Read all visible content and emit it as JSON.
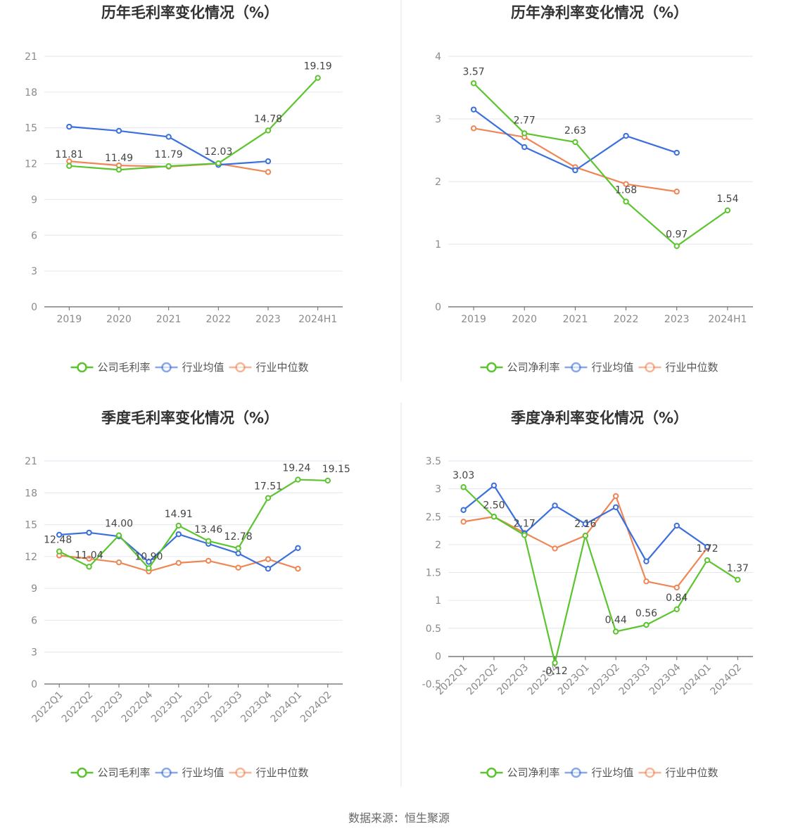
{
  "source_text": "数据来源：恒生聚源",
  "colors": {
    "company": "#5cc42e",
    "industry_avg": "#3a6fdc",
    "industry_median": "#ee8655",
    "grid": "#e3e6ef",
    "axis": "#666666",
    "divider": "#e6e6e6"
  },
  "chart_data": [
    {
      "type": "line",
      "title": "历年毛利率变化情况（%）",
      "categories": [
        "2019",
        "2020",
        "2021",
        "2022",
        "2023",
        "2024H1"
      ],
      "ylim": [
        0,
        21
      ],
      "yticks": [
        "0",
        "3",
        "6",
        "9",
        "12",
        "15",
        "18",
        "21"
      ],
      "rotate_x_labels": false,
      "grid": true,
      "legend_position": "bottom",
      "series": [
        {
          "name": "公司毛利率",
          "color_key": "company",
          "values": [
            11.81,
            11.49,
            11.79,
            12.03,
            14.78,
            19.19
          ],
          "labels": [
            "11.81",
            "11.49",
            "11.79",
            "12.03",
            "14.78",
            "19.19"
          ]
        },
        {
          "name": "行业均值",
          "color_key": "industry_avg",
          "values": [
            15.1,
            14.75,
            14.25,
            11.9,
            12.2,
            null
          ]
        },
        {
          "name": "行业中位数",
          "color_key": "industry_median",
          "values": [
            12.2,
            11.85,
            11.75,
            12.0,
            11.3,
            null
          ]
        }
      ]
    },
    {
      "type": "line",
      "title": "历年净利率变化情况（%）",
      "categories": [
        "2019",
        "2020",
        "2021",
        "2022",
        "2023",
        "2024H1"
      ],
      "ylim": [
        0,
        4
      ],
      "yticks": [
        "0",
        "1",
        "2",
        "3",
        "4"
      ],
      "rotate_x_labels": false,
      "grid": true,
      "legend_position": "bottom",
      "series": [
        {
          "name": "公司净利率",
          "color_key": "company",
          "values": [
            3.57,
            2.77,
            2.63,
            1.68,
            0.97,
            1.54
          ],
          "labels": [
            "3.57",
            "2.77",
            "2.63",
            "1.68",
            "0.97",
            "1.54"
          ]
        },
        {
          "name": "行业均值",
          "color_key": "industry_avg",
          "values": [
            3.15,
            2.55,
            2.18,
            2.73,
            2.46,
            null
          ]
        },
        {
          "name": "行业中位数",
          "color_key": "industry_median",
          "values": [
            2.85,
            2.71,
            2.23,
            1.96,
            1.84,
            null
          ]
        }
      ]
    },
    {
      "type": "line",
      "title": "季度毛利率变化情况（%）",
      "categories": [
        "2022Q1",
        "2022Q2",
        "2022Q3",
        "2022Q4",
        "2023Q1",
        "2023Q2",
        "2023Q3",
        "2023Q4",
        "2024Q1",
        "2024Q2"
      ],
      "ylim": [
        0,
        21
      ],
      "yticks": [
        "0",
        "3",
        "6",
        "9",
        "12",
        "15",
        "18",
        "21"
      ],
      "rotate_x_labels": true,
      "grid": true,
      "legend_position": "bottom",
      "series": [
        {
          "name": "公司毛利率",
          "color_key": "company",
          "values": [
            12.48,
            11.04,
            14.0,
            10.9,
            14.91,
            13.46,
            12.78,
            17.51,
            19.24,
            19.15
          ],
          "labels": [
            "12.48",
            "11.04",
            "14.00",
            "10.90",
            "14.91",
            "13.46",
            "12.78",
            "17.51",
            "19.24",
            "19.15"
          ]
        },
        {
          "name": "行业均值",
          "color_key": "industry_avg",
          "values": [
            14.05,
            14.25,
            13.9,
            11.5,
            14.1,
            13.2,
            12.3,
            10.85,
            12.8,
            null
          ]
        },
        {
          "name": "行业中位数",
          "color_key": "industry_median",
          "values": [
            12.1,
            11.8,
            11.45,
            10.6,
            11.4,
            11.6,
            10.95,
            11.75,
            10.85,
            null
          ]
        }
      ]
    },
    {
      "type": "line",
      "title": "季度净利率变化情况（%）",
      "categories": [
        "2022Q1",
        "2022Q2",
        "2022Q3",
        "2022Q4",
        "2023Q1",
        "2023Q2",
        "2023Q3",
        "2023Q4",
        "2024Q1",
        "2024Q2"
      ],
      "ylim": [
        -0.5,
        3.5
      ],
      "yticks": [
        "-0.5",
        "0",
        "0.5",
        "1",
        "1.5",
        "2",
        "2.5",
        "3",
        "3.5"
      ],
      "rotate_x_labels": true,
      "grid": true,
      "legend_position": "bottom",
      "series": [
        {
          "name": "公司净利率",
          "color_key": "company",
          "values": [
            3.03,
            2.5,
            2.17,
            -0.12,
            2.16,
            0.44,
            0.56,
            0.84,
            1.72,
            1.37
          ],
          "labels": [
            "3.03",
            "2.50",
            "2.17",
            "-0.12",
            "2.16",
            "0.44",
            "0.56",
            "0.84",
            "1.72",
            "1.37"
          ]
        },
        {
          "name": "行业均值",
          "color_key": "industry_avg",
          "values": [
            2.62,
            3.06,
            2.2,
            2.7,
            2.37,
            2.67,
            1.7,
            2.34,
            1.96,
            null
          ]
        },
        {
          "name": "行业中位数",
          "color_key": "industry_median",
          "values": [
            2.41,
            2.5,
            2.21,
            1.93,
            2.16,
            2.87,
            1.34,
            1.23,
            1.94,
            null
          ]
        }
      ]
    }
  ]
}
